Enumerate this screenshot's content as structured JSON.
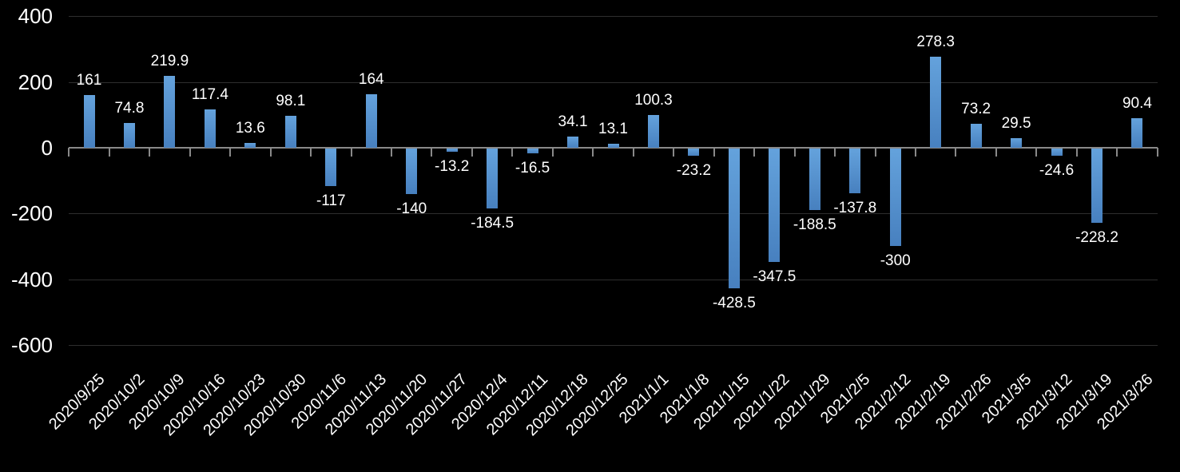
{
  "chart_data": {
    "type": "bar",
    "title": "",
    "xlabel": "",
    "ylabel": "",
    "categories": [
      "2020/9/25",
      "2020/10/2",
      "2020/10/9",
      "2020/10/16",
      "2020/10/23",
      "2020/10/30",
      "2020/11/6",
      "2020/11/13",
      "2020/11/20",
      "2020/11/27",
      "2020/12/4",
      "2020/12/11",
      "2020/12/18",
      "2020/12/25",
      "2021/1/1",
      "2021/1/8",
      "2021/1/15",
      "2021/1/22",
      "2021/1/29",
      "2021/2/5",
      "2021/2/12",
      "2021/2/19",
      "2021/2/26",
      "2021/3/5",
      "2021/3/12",
      "2021/3/19",
      "2021/3/26"
    ],
    "values": [
      161,
      74.8,
      219.9,
      117.4,
      13.6,
      98.1,
      -117,
      164,
      -140,
      -13.2,
      -184.5,
      -16.5,
      34.1,
      13.1,
      100.3,
      -23.2,
      -428.5,
      -347.5,
      -188.5,
      -137.8,
      -300,
      278.3,
      73.2,
      29.5,
      -24.6,
      -228.2,
      90.4
    ],
    "ylim": [
      -600,
      400
    ],
    "yticks": [
      400,
      200,
      0,
      -200,
      -400,
      -600
    ],
    "grid": true,
    "legend": false,
    "data_labels": true,
    "x_label_rotation_deg": -45,
    "colors": {
      "background": "#000000",
      "bar_gradient_top": "#64a2dc",
      "bar_gradient_bottom": "#4780bf",
      "gridline": "#2e2e2e",
      "axis": "#898989",
      "text": "#ffffff"
    }
  }
}
